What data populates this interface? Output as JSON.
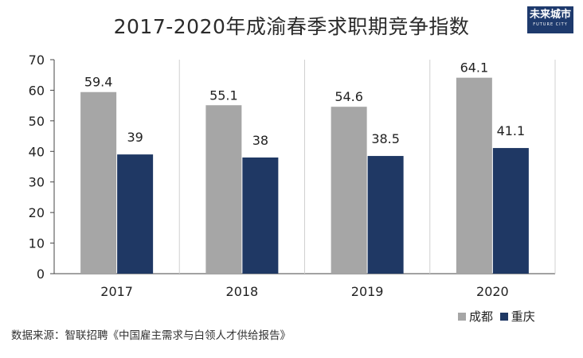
{
  "chart_data": {
    "type": "bar",
    "title": "2017-2020年成渝春季求职期竞争指数",
    "categories": [
      "2017",
      "2018",
      "2019",
      "2020"
    ],
    "series": [
      {
        "name": "成都",
        "values": [
          59.4,
          55.1,
          54.6,
          64.1
        ],
        "labels": [
          "59.4",
          "55.1",
          "54.6",
          "64.1"
        ],
        "color": "#a6a6a6"
      },
      {
        "name": "重庆",
        "values": [
          39,
          38,
          38.5,
          41.1
        ],
        "labels": [
          "39",
          "38",
          "38.5",
          "41.1"
        ],
        "color": "#1f3864"
      }
    ],
    "ylim": [
      0,
      70
    ],
    "yticks": [
      "0",
      "10",
      "20",
      "30",
      "40",
      "50",
      "60",
      "70"
    ],
    "xlabel": "",
    "ylabel": "",
    "grid": "vertical separators",
    "legend": "bottom-right"
  },
  "logo": {
    "main": "未来城市",
    "sub": "FUTURE CITY"
  },
  "source": "数据来源：智联招聘《中国雇主需求与白领人才供给报告》"
}
